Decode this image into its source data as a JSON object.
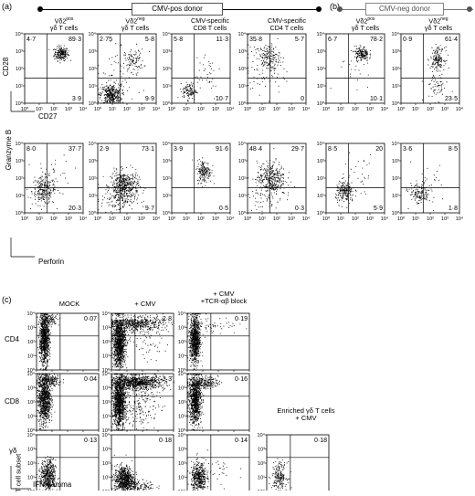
{
  "panel_a": {
    "letter": "(a)",
    "donor_label": "CMV-pos donor",
    "row1": {
      "y_axis": "CD28",
      "x_axis": "CD27",
      "plots": [
        {
          "title1": "Vδ2",
          "sup": "pos",
          "title2": "γδ T cells",
          "quadrants": {
            "ul": "4·7",
            "ur": "89·3",
            "ll": "",
            "lr": "3·9"
          }
        },
        {
          "title1": "Vδ2",
          "sup": "neg",
          "title2": "γδ T cells",
          "quadrants": {
            "ul": "2·75",
            "ur": "5·8",
            "ll": "",
            "lr": "9·9"
          }
        },
        {
          "title1": "CMV-specific",
          "sup": "",
          "title2": "CD8 T cells",
          "quadrants": {
            "ul": "5·8",
            "ur": "11·3",
            "ll": "",
            "lr": "10·7"
          }
        },
        {
          "title1": "CMV-specific",
          "sup": "",
          "title2": "CD4 T cells",
          "quadrants": {
            "ul": "35·8",
            "ur": "5·7",
            "ll": "",
            "lr": "0"
          }
        }
      ]
    },
    "row2": {
      "y_axis": "Granzyme B",
      "x_axis": "Perforin",
      "plots": [
        {
          "quadrants": {
            "ul": "8·0",
            "ur": "37·7",
            "ll": "",
            "lr": "20·3"
          }
        },
        {
          "quadrants": {
            "ul": "2·9",
            "ur": "73·1",
            "ll": "",
            "lr": "9·7"
          }
        },
        {
          "quadrants": {
            "ul": "3·9",
            "ur": "91·6",
            "ll": "",
            "lr": "0·5"
          }
        },
        {
          "quadrants": {
            "ul": "48·4",
            "ur": "29·7",
            "ll": "",
            "lr": "0·3"
          }
        }
      ]
    }
  },
  "panel_b": {
    "letter": "(b)",
    "donor_label": "CMV-neg donor",
    "row1": {
      "plots": [
        {
          "title1": "Vδ2",
          "sup": "pos",
          "title2": "γδ T cells",
          "quadrants": {
            "ul": "6·7",
            "ur": "78·2",
            "ll": "",
            "lr": "10·1"
          }
        },
        {
          "title1": "Vδ2",
          "sup": "neg",
          "title2": "γδ T cells",
          "quadrants": {
            "ul": "0·9",
            "ur": "61·4",
            "ll": "",
            "lr": "23·5"
          }
        }
      ]
    },
    "row2": {
      "plots": [
        {
          "quadrants": {
            "ul": "8·5",
            "ur": "20",
            "ll": "",
            "lr": "5·9"
          }
        },
        {
          "quadrants": {
            "ul": "3·6",
            "ur": "8·5",
            "ll": "",
            "lr": "1·8"
          }
        }
      ]
    }
  },
  "panel_c": {
    "letter": "(c)",
    "columns": [
      "MOCK",
      "+ CMV",
      "+ CMV\n+TCR-αβ block",
      "Enriched γδ T cells\n+ CMV"
    ],
    "rows": [
      {
        "label": "CD4",
        "values": [
          "0·07",
          "2·8",
          "0·19"
        ]
      },
      {
        "label": "CD8",
        "values": [
          "0·04",
          "3·3",
          "0·16"
        ]
      },
      {
        "label": "γδ",
        "values": [
          "0·13",
          "0·18",
          "0·14",
          "0·18"
        ]
      }
    ],
    "y_axis": "T cell subset",
    "x_axis": "IFN-gamma"
  },
  "axis_ticks": {
    "ab": [
      "10⁰",
      "10¹",
      "10²",
      "10³",
      "10⁴"
    ],
    "c_x": [
      "10⁰",
      "10¹",
      "10²",
      "10³",
      "10⁴"
    ],
    "c_y": [
      "10⁰",
      "10¹",
      "10²",
      "10³",
      "10⁴"
    ]
  },
  "chart_data": [
    {
      "type": "scatter",
      "panel": "a",
      "row": 1,
      "title": "Vδ2pos γδ T cells",
      "xlabel": "CD27",
      "ylabel": "CD28",
      "xscale": "log",
      "yscale": "log",
      "xlim": [
        1,
        10000
      ],
      "ylim": [
        1,
        10000
      ],
      "quadrant_percent": {
        "upper_left": 4.7,
        "upper_right": 89.3,
        "lower_right": 3.9
      }
    },
    {
      "type": "scatter",
      "panel": "a",
      "row": 1,
      "title": "Vδ2neg γδ T cells",
      "xlabel": "CD27",
      "ylabel": "CD28",
      "xscale": "log",
      "yscale": "log",
      "xlim": [
        1,
        10000
      ],
      "ylim": [
        1,
        10000
      ],
      "quadrant_percent": {
        "upper_left": 2.75,
        "upper_right": 5.8,
        "lower_right": 9.9
      }
    },
    {
      "type": "scatter",
      "panel": "a",
      "row": 1,
      "title": "CMV-specific CD8 T cells",
      "xlabel": "CD27",
      "ylabel": "CD28",
      "xscale": "log",
      "yscale": "log",
      "xlim": [
        1,
        10000
      ],
      "ylim": [
        1,
        10000
      ],
      "quadrant_percent": {
        "upper_left": 5.8,
        "upper_right": 11.3,
        "lower_right": 10.7
      }
    },
    {
      "type": "scatter",
      "panel": "a",
      "row": 1,
      "title": "CMV-specific CD4 T cells",
      "xlabel": "CD27",
      "ylabel": "CD28",
      "xscale": "log",
      "yscale": "log",
      "xlim": [
        1,
        10000
      ],
      "ylim": [
        1,
        10000
      ],
      "quadrant_percent": {
        "upper_left": 35.8,
        "upper_right": 5.7,
        "lower_right": 0
      }
    },
    {
      "type": "scatter",
      "panel": "a",
      "row": 2,
      "title": "Vδ2pos γδ T cells",
      "xlabel": "Perforin",
      "ylabel": "Granzyme B",
      "xscale": "log",
      "yscale": "log",
      "xlim": [
        1,
        10000
      ],
      "ylim": [
        1,
        10000
      ],
      "quadrant_percent": {
        "upper_left": 8.0,
        "upper_right": 37.7,
        "lower_right": 20.3
      }
    },
    {
      "type": "scatter",
      "panel": "a",
      "row": 2,
      "title": "Vδ2neg γδ T cells",
      "xlabel": "Perforin",
      "ylabel": "Granzyme B",
      "xscale": "log",
      "yscale": "log",
      "xlim": [
        1,
        10000
      ],
      "ylim": [
        1,
        10000
      ],
      "quadrant_percent": {
        "upper_left": 2.9,
        "upper_right": 73.1,
        "lower_right": 9.7
      }
    },
    {
      "type": "scatter",
      "panel": "a",
      "row": 2,
      "title": "CMV-specific CD8 T cells",
      "xlabel": "Perforin",
      "ylabel": "Granzyme B",
      "xscale": "log",
      "yscale": "log",
      "xlim": [
        1,
        10000
      ],
      "ylim": [
        1,
        10000
      ],
      "quadrant_percent": {
        "upper_left": 3.9,
        "upper_right": 91.6,
        "lower_right": 0.5
      }
    },
    {
      "type": "scatter",
      "panel": "a",
      "row": 2,
      "title": "CMV-specific CD4 T cells",
      "xlabel": "Perforin",
      "ylabel": "Granzyme B",
      "xscale": "log",
      "yscale": "log",
      "xlim": [
        1,
        10000
      ],
      "ylim": [
        1,
        10000
      ],
      "quadrant_percent": {
        "upper_left": 48.4,
        "upper_right": 29.7,
        "lower_right": 0.3
      }
    },
    {
      "type": "scatter",
      "panel": "b",
      "row": 1,
      "title": "Vδ2pos γδ T cells",
      "xlabel": "CD27",
      "ylabel": "CD28",
      "xscale": "log",
      "yscale": "log",
      "xlim": [
        1,
        10000
      ],
      "ylim": [
        1,
        10000
      ],
      "quadrant_percent": {
        "upper_left": 6.7,
        "upper_right": 78.2,
        "lower_right": 10.1
      }
    },
    {
      "type": "scatter",
      "panel": "b",
      "row": 1,
      "title": "Vδ2neg γδ T cells",
      "xlabel": "CD27",
      "ylabel": "CD28",
      "xscale": "log",
      "yscale": "log",
      "xlim": [
        1,
        10000
      ],
      "ylim": [
        1,
        10000
      ],
      "quadrant_percent": {
        "upper_left": 0.9,
        "upper_right": 61.4,
        "lower_right": 23.5
      }
    },
    {
      "type": "scatter",
      "panel": "b",
      "row": 2,
      "title": "Vδ2pos γδ T cells",
      "xlabel": "Perforin",
      "ylabel": "Granzyme B",
      "xscale": "log",
      "yscale": "log",
      "xlim": [
        1,
        10000
      ],
      "ylim": [
        1,
        10000
      ],
      "quadrant_percent": {
        "upper_left": 8.5,
        "upper_right": 20,
        "lower_right": 5.9
      }
    },
    {
      "type": "scatter",
      "panel": "b",
      "row": 2,
      "title": "Vδ2neg γδ T cells",
      "xlabel": "Perforin",
      "ylabel": "Granzyme B",
      "xscale": "log",
      "yscale": "log",
      "xlim": [
        1,
        10000
      ],
      "ylim": [
        1,
        10000
      ],
      "quadrant_percent": {
        "upper_left": 3.6,
        "upper_right": 8.5,
        "lower_right": 1.8
      }
    },
    {
      "type": "scatter",
      "panel": "c",
      "title": "MOCK",
      "row_label": "CD4",
      "xlabel": "IFN-gamma",
      "xscale": "log",
      "yscale": "log",
      "xlim": [
        1,
        10000
      ],
      "ylim": [
        1,
        10000
      ],
      "upper_right_percent": 0.07
    },
    {
      "type": "scatter",
      "panel": "c",
      "title": "+ CMV",
      "row_label": "CD4",
      "xlabel": "IFN-gamma",
      "xscale": "log",
      "yscale": "log",
      "xlim": [
        1,
        10000
      ],
      "ylim": [
        1,
        10000
      ],
      "upper_right_percent": 2.8
    },
    {
      "type": "scatter",
      "panel": "c",
      "title": "+ CMV +TCR-αβ block",
      "row_label": "CD4",
      "xlabel": "IFN-gamma",
      "xscale": "log",
      "yscale": "log",
      "xlim": [
        1,
        10000
      ],
      "ylim": [
        1,
        10000
      ],
      "upper_right_percent": 0.19
    },
    {
      "type": "scatter",
      "panel": "c",
      "title": "MOCK",
      "row_label": "CD8",
      "xlabel": "IFN-gamma",
      "xscale": "log",
      "yscale": "log",
      "xlim": [
        1,
        10000
      ],
      "ylim": [
        1,
        10000
      ],
      "upper_right_percent": 0.04
    },
    {
      "type": "scatter",
      "panel": "c",
      "title": "+ CMV",
      "row_label": "CD8",
      "xlabel": "IFN-gamma",
      "xscale": "log",
      "yscale": "log",
      "xlim": [
        1,
        10000
      ],
      "ylim": [
        1,
        10000
      ],
      "upper_right_percent": 3.3
    },
    {
      "type": "scatter",
      "panel": "c",
      "title": "+ CMV +TCR-αβ block",
      "row_label": "CD8",
      "xlabel": "IFN-gamma",
      "xscale": "log",
      "yscale": "log",
      "xlim": [
        1,
        10000
      ],
      "ylim": [
        1,
        10000
      ],
      "upper_right_percent": 0.16
    },
    {
      "type": "scatter",
      "panel": "c",
      "title": "MOCK",
      "row_label": "γδ",
      "xlabel": "IFN-gamma",
      "xscale": "log",
      "yscale": "log",
      "xlim": [
        1,
        10000
      ],
      "ylim": [
        1,
        10000
      ],
      "upper_right_percent": 0.13
    },
    {
      "type": "scatter",
      "panel": "c",
      "title": "+ CMV",
      "row_label": "γδ",
      "xlabel": "IFN-gamma",
      "xscale": "log",
      "yscale": "log",
      "xlim": [
        1,
        10000
      ],
      "ylim": [
        1,
        10000
      ],
      "upper_right_percent": 0.18
    },
    {
      "type": "scatter",
      "panel": "c",
      "title": "+ CMV +TCR-αβ block",
      "row_label": "γδ",
      "xlabel": "IFN-gamma",
      "xscale": "log",
      "yscale": "log",
      "xlim": [
        1,
        10000
      ],
      "ylim": [
        1,
        10000
      ],
      "upper_right_percent": 0.14
    },
    {
      "type": "scatter",
      "panel": "c",
      "title": "Enriched γδ T cells + CMV",
      "row_label": "γδ",
      "xlabel": "IFN-gamma",
      "xscale": "log",
      "yscale": "log",
      "xlim": [
        1,
        10000
      ],
      "ylim": [
        1,
        10000
      ],
      "upper_right_percent": 0.18
    }
  ]
}
